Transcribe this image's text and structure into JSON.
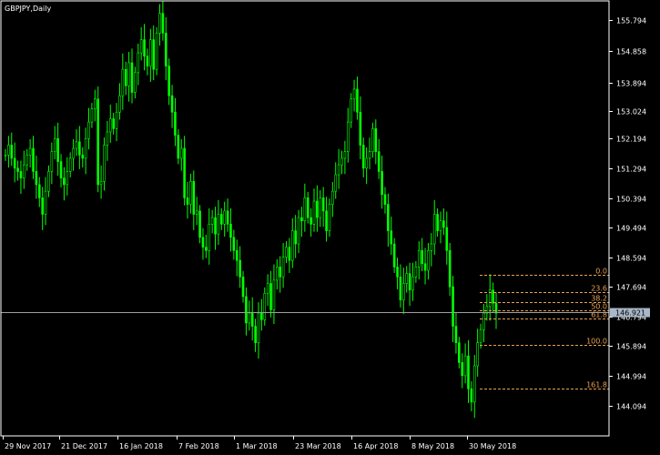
{
  "window": {
    "symbol_timeframe": "GBPJPY,Daily"
  },
  "price_marker": {
    "value": 146.921,
    "label": "146.921"
  },
  "colors": {
    "background": "#000000",
    "frame": "#ffffff",
    "candle": "#00ff00",
    "fibonacci": "#E8A050",
    "bid_line": "#a0a0a0",
    "price_tag_bg": "#a8b8c8"
  },
  "chart_data": {
    "type": "candlestick",
    "title": "GBPJPY,Daily",
    "y_axis": {
      "ylim": [
        143.2,
        156.35
      ],
      "ticks": [
        "155.794",
        "154.858",
        "153.894",
        "153.024",
        "152.194",
        "151.294",
        "150.394",
        "149.494",
        "148.594",
        "147.694",
        "146.794",
        "145.894",
        "144.994",
        "144.094"
      ]
    },
    "x_axis": {
      "labels": [
        "29 Nov 2017",
        "21 Dec 2017",
        "16 Jan 2018",
        "7 Feb 2018",
        "1 Mar 2018",
        "23 Mar 2018",
        "16 Apr 2018",
        "8 May 2018",
        "30 May 2018"
      ]
    },
    "closes": [
      151.7,
      152.0,
      151.6,
      151.3,
      151.2,
      151.0,
      151.4,
      151.7,
      151.9,
      151.2,
      150.8,
      150.4,
      149.9,
      150.6,
      151.2,
      151.8,
      152.2,
      151.5,
      151.0,
      150.8,
      151.2,
      151.6,
      151.9,
      152.1,
      151.7,
      151.6,
      152.2,
      152.7,
      153.1,
      153.4,
      150.8,
      150.9,
      152.0,
      152.4,
      152.8,
      152.5,
      153.0,
      153.5,
      154.3,
      153.8,
      154.5,
      153.6,
      154.2,
      154.8,
      155.2,
      154.7,
      154.4,
      155.2,
      154.3,
      155.4,
      156.0,
      155.4,
      154.4,
      153.5,
      153.0,
      152.3,
      151.6,
      151.9,
      150.4,
      150.2,
      150.9,
      149.9,
      150.0,
      149.2,
      148.9,
      148.8,
      149.6,
      149.8,
      149.3,
      149.9,
      149.6,
      150.0,
      149.6,
      149.2,
      148.8,
      148.5,
      148.0,
      147.4,
      146.6,
      146.9,
      146.5,
      146.0,
      146.9,
      146.7,
      147.5,
      147.8,
      147.0,
      147.9,
      148.3,
      148.0,
      148.6,
      148.9,
      148.5,
      149.4,
      149.0,
      149.8,
      149.7,
      150.4,
      149.8,
      149.6,
      150.3,
      149.8,
      150.4,
      150.0,
      149.4,
      150.2,
      150.6,
      151.1,
      151.4,
      151.6,
      151.8,
      152.7,
      153.4,
      153.7,
      153.0,
      152.0,
      151.3,
      151.6,
      151.8,
      152.5,
      151.8,
      151.2,
      150.5,
      150.2,
      149.4,
      149.0,
      148.3,
      148.0,
      147.3,
      147.8,
      148.1,
      147.6,
      148.0,
      148.3,
      148.8,
      148.4,
      148.2,
      148.8,
      149.0,
      149.9,
      149.4,
      149.7,
      149.5,
      148.8,
      147.7,
      146.5,
      146.0,
      145.4,
      145.0,
      145.6,
      144.6,
      144.2,
      145.3,
      146.0,
      146.4,
      146.9,
      147.1,
      147.6,
      147.2,
      146.9
    ],
    "fibonacci_levels": [
      {
        "label": "0.0",
        "price": 148.053
      },
      {
        "label": "23.6",
        "price": 147.55
      },
      {
        "label": "38.2",
        "price": 147.24
      },
      {
        "label": "50.0",
        "price": 146.99
      },
      {
        "label": "61.8",
        "price": 146.74
      },
      {
        "label": "100.0",
        "price": 145.925
      },
      {
        "label": "161.8",
        "price": 144.61
      }
    ]
  }
}
